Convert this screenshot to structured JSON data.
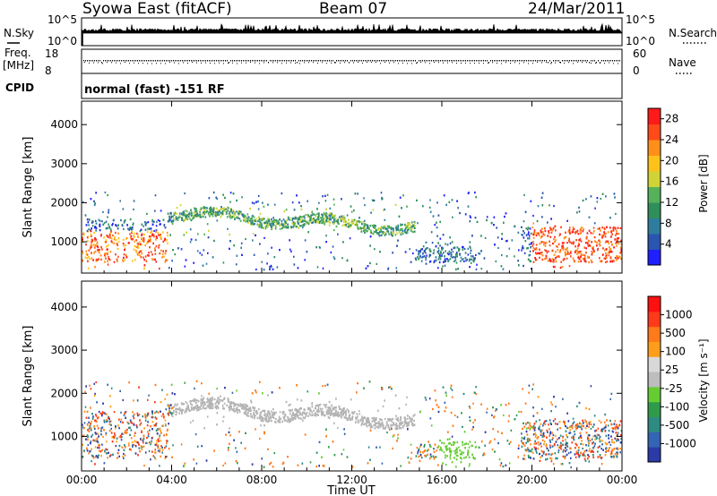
{
  "header": {
    "station": "Syowa East (fitACF)",
    "beam": "Beam 07",
    "date": "24/Mar/2011"
  },
  "noise_panel": {
    "left_label": "N.Sky",
    "right_label": "N.Search",
    "left_ticks": [
      "10^5",
      "10^0"
    ],
    "right_ticks": [
      "10^5",
      "10^0"
    ]
  },
  "freq_panel": {
    "left_label_line1": "Freq.",
    "left_label_line2": "[MHz]",
    "right_label": "Nave",
    "left_ticks": [
      "18",
      "8"
    ],
    "right_ticks": [
      "60",
      "0"
    ]
  },
  "cpid_panel": {
    "label": "CPID",
    "text": "normal (fast) -151 RF"
  },
  "colors": {
    "power_scale": [
      "#1f1fff",
      "#2a55b0",
      "#2e7d9e",
      "#2f8f5a",
      "#55b25a",
      "#cfd335",
      "#ffc21a",
      "#ff8f1a",
      "#ff4a1a",
      "#ff1a1a"
    ],
    "velocity_scale": [
      "#2a3aa6",
      "#3464b4",
      "#2e8a82",
      "#2f9b4a",
      "#66cc33",
      "#bdbdbd",
      "#d8d8d8",
      "#ff9e1a",
      "#ff7a1a",
      "#ff3a1a",
      "#ff1010"
    ],
    "ground_scatter": "#b4b4b4"
  },
  "chart_data": [
    {
      "type": "heatmap",
      "name": "power",
      "xlabel": "",
      "ylabel": "Slant Range [km]",
      "xlim": [
        0,
        24
      ],
      "ylim": [
        200,
        4600
      ],
      "yticks": [
        1000,
        2000,
        3000,
        4000
      ],
      "colorbar": {
        "label": "Power [dB]",
        "range": [
          0,
          30
        ],
        "ticks": [
          "4",
          "8",
          "12",
          "16",
          "20",
          "24",
          "28"
        ]
      }
    },
    {
      "type": "heatmap",
      "name": "velocity",
      "xlabel": "Time UT",
      "ylabel": "Slant Range [km]",
      "xlim": [
        0,
        24
      ],
      "ylim": [
        200,
        4600
      ],
      "yticks": [
        1000,
        2000,
        3000,
        4000
      ],
      "xticks": [
        "00:00",
        "04:00",
        "08:00",
        "12:00",
        "16:00",
        "20:00",
        "00:00"
      ],
      "colorbar": {
        "label": "Velocity [m s⁻¹]",
        "ticks": [
          "1000",
          "500",
          "100",
          "25",
          "-25",
          "-100",
          "-500",
          "-1000"
        ]
      }
    }
  ]
}
